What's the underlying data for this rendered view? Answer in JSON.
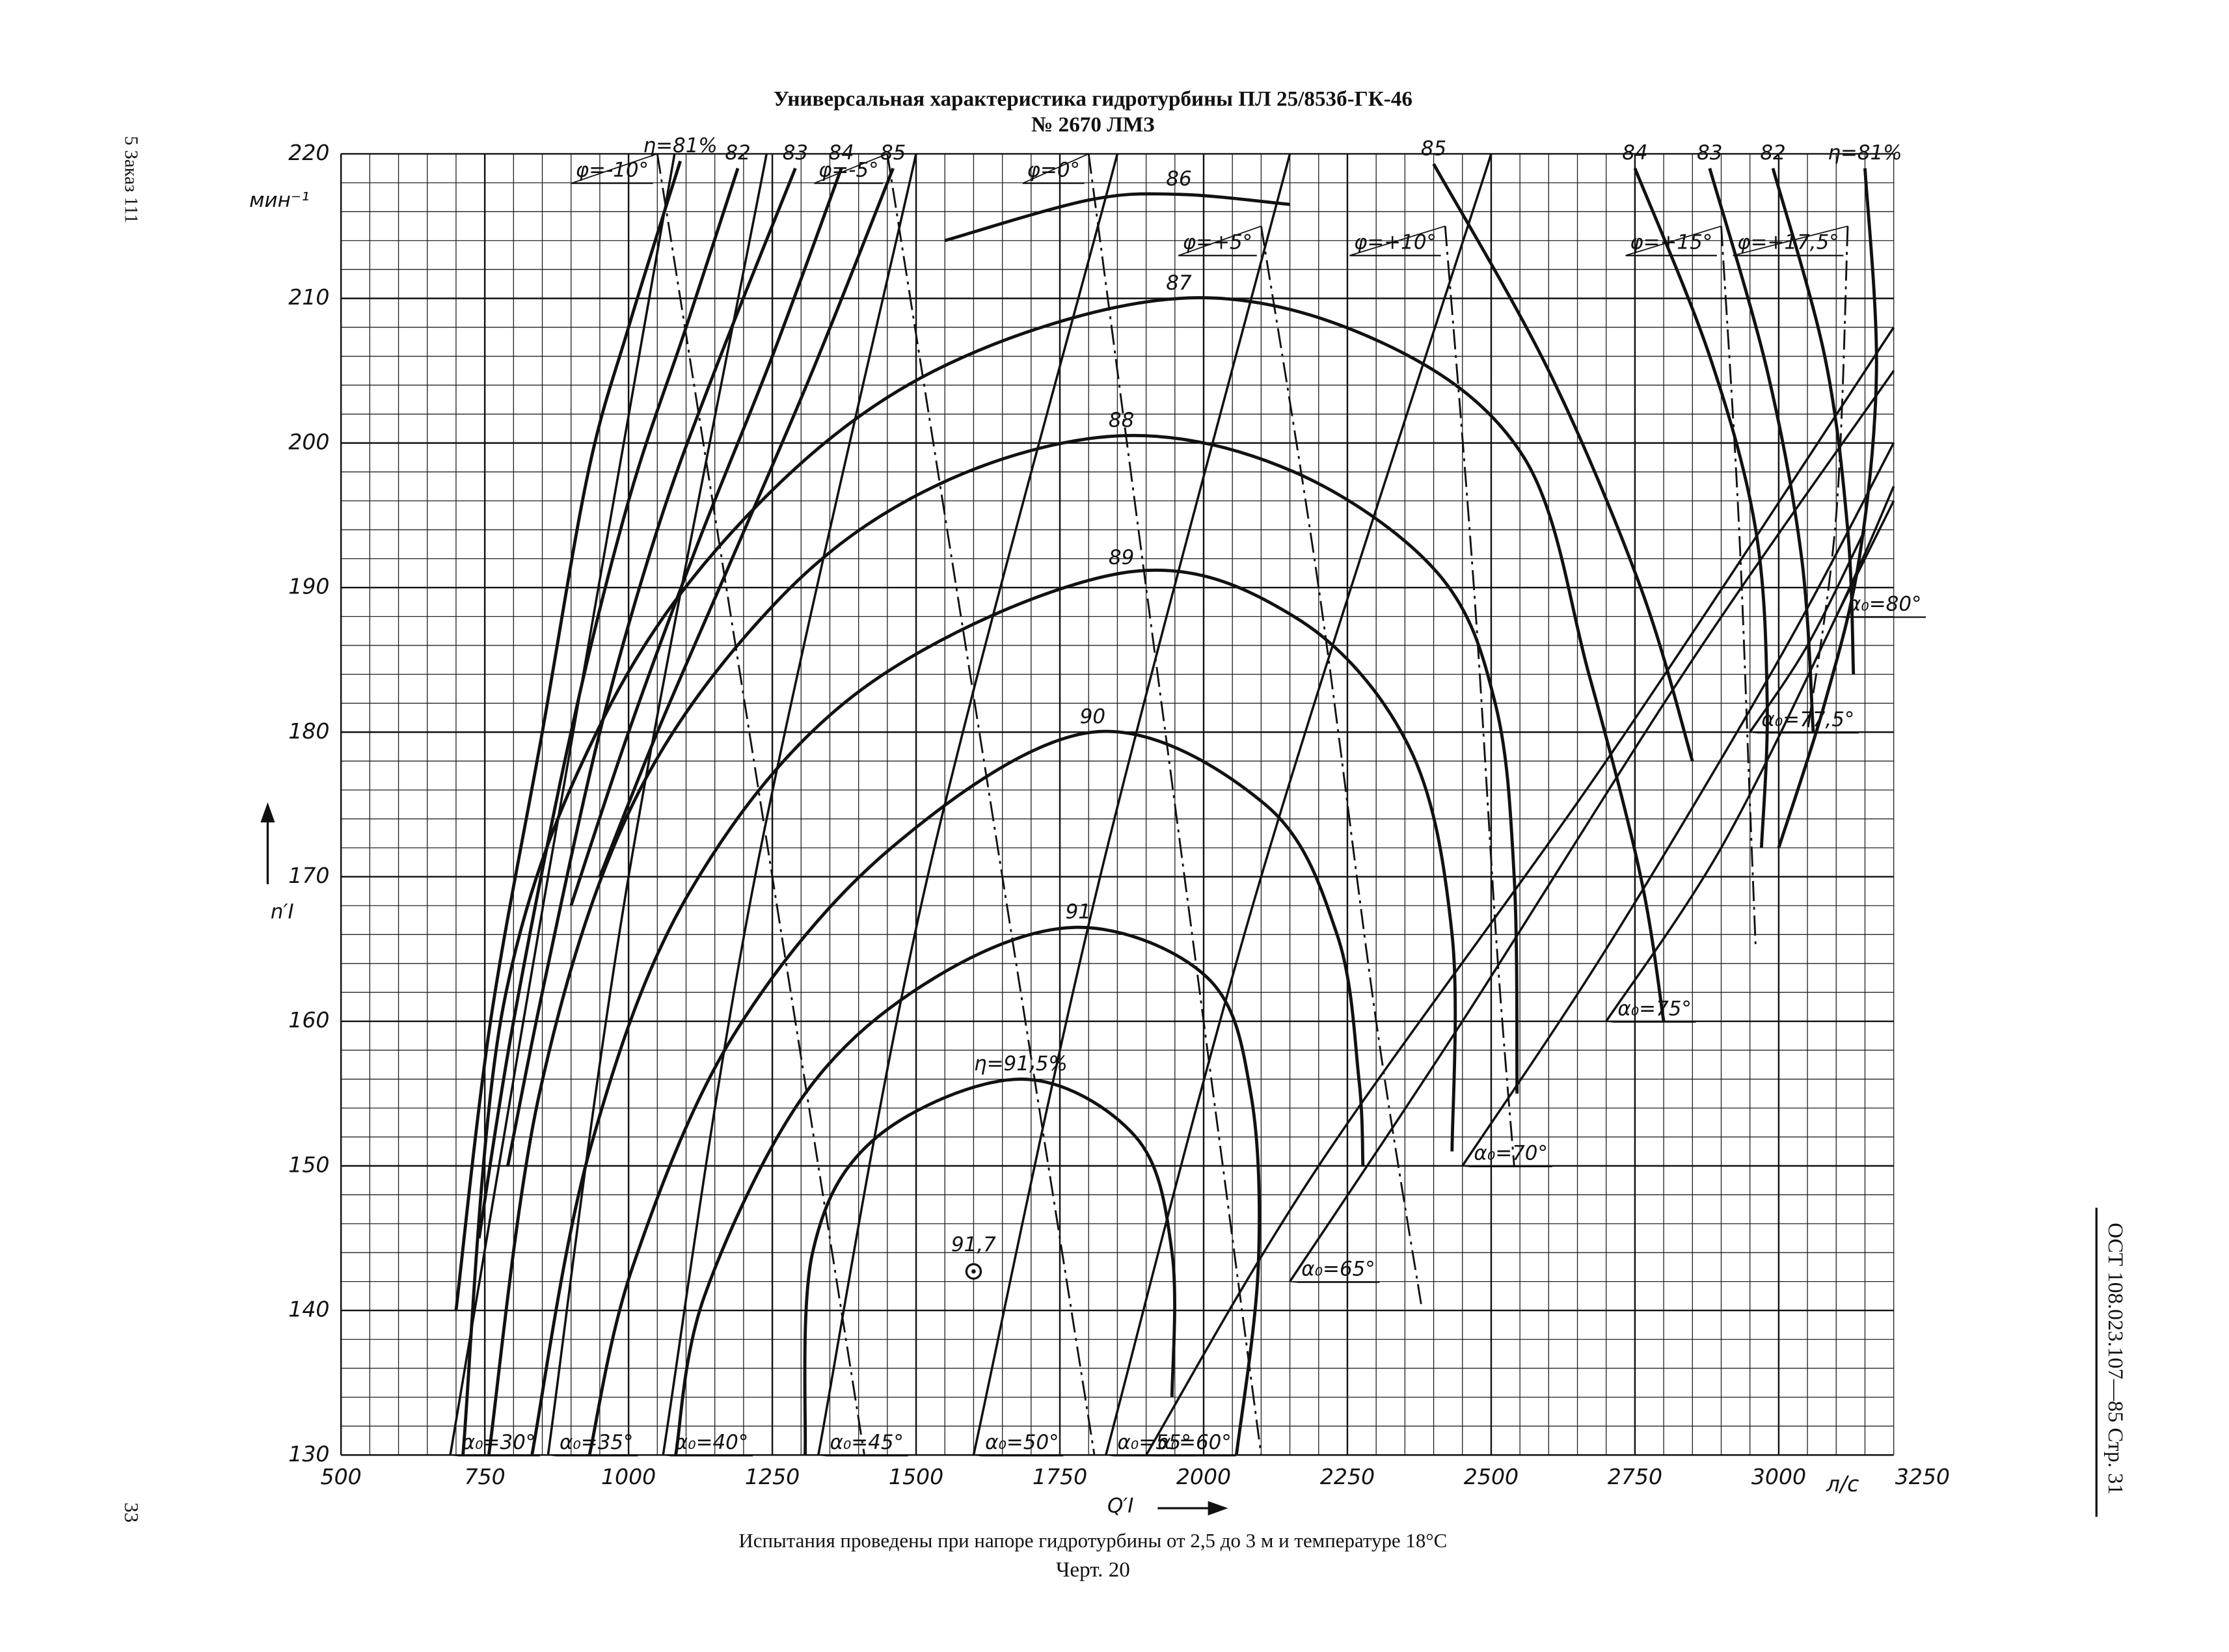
{
  "chart_data": {
    "type": "hill",
    "title": "Универсальная характеристика гидротурбины ПЛ 25/853б-ГК-46",
    "subtitle": "№ 2670 ЛМЗ",
    "x_label": "Q′I",
    "x_units": "л/с",
    "y_label": "n′I",
    "y_units": "мин⁻¹",
    "caption": "Испытания проведены при напоре гидротурбины от 2,5 до 3 м и температуре 18°С",
    "figure": "Черт. 20",
    "margin_left_top": "5 Заказ 111",
    "margin_left_bottom": "33",
    "margin_right": "ОСТ 108.023.107—85 Стр. 31",
    "xlim": [
      500,
      3200
    ],
    "ylim": [
      130,
      220
    ],
    "xticks": [
      500,
      750,
      1000,
      1250,
      1500,
      1750,
      2000,
      2250,
      2500,
      2750,
      3000,
      3250
    ],
    "yticks": [
      130,
      140,
      150,
      160,
      170,
      180,
      190,
      200,
      210,
      220
    ],
    "grid": true,
    "minor_divisions": 5,
    "optimum": {
      "label": "91,7",
      "x": 1600,
      "y": 142.7
    },
    "series": [
      {
        "name": "η=91,5%",
        "x": [
          1307,
          1320,
          1432,
          1682,
          1882,
          1945,
          1945
        ],
        "values": [
          130,
          144,
          152,
          156,
          152,
          144,
          134
        ]
      },
      {
        "name": "91",
        "x": [
          1082,
          1132,
          1307,
          1532,
          1782,
          2007,
          2082,
          2095,
          2057
        ],
        "values": [
          130,
          141,
          155,
          163,
          166.5,
          163,
          155,
          143,
          130
        ]
      },
      {
        "name": "90",
        "x": [
          932,
          1007,
          1182,
          1457,
          1807,
          2107,
          2232,
          2270,
          2277
        ],
        "values": [
          130,
          143,
          159,
          172,
          180,
          175,
          166,
          156,
          150
        ]
      },
      {
        "name": "89",
        "x": [
          832,
          932,
          1107,
          1407,
          1857,
          2157,
          2357,
          2432,
          2432
        ],
        "values": [
          130,
          151,
          169,
          183,
          191,
          188,
          179,
          166,
          151
        ]
      },
      {
        "name": "88",
        "x": [
          757,
          845,
          1007,
          1257,
          1532,
          1857,
          2157,
          2407,
          2507,
          2540,
          2545
        ],
        "values": [
          130,
          155,
          175,
          189,
          197,
          200.5,
          198,
          191,
          182,
          170,
          155
        ]
      },
      {
        "name": "87",
        "x": [
          712,
          782,
          957,
          1207,
          1532,
          1957,
          2307,
          2557,
          2670,
          2760,
          2800
        ],
        "values": [
          130,
          161,
          181,
          195,
          205,
          210,
          207,
          199,
          184,
          170,
          160
        ]
      },
      {
        "name": "86",
        "x": [
          1550,
          1800,
          1957,
          2150
        ],
        "values": [
          214,
          216.8,
          217.2,
          216.5
        ]
      },
      {
        "name": "85",
        "x": [
          1460,
          1320,
          1180,
          1050,
          950
        ],
        "values": [
          219,
          205,
          192,
          180,
          170
        ]
      },
      {
        "name": "84",
        "x": [
          1370,
          1250,
          1120,
          1000,
          900
        ],
        "values": [
          219,
          206,
          193,
          180,
          168
        ]
      },
      {
        "name": "83",
        "x": [
          1290,
          1150,
          1050,
          950,
          850,
          790
        ],
        "values": [
          219,
          205,
          194,
          180,
          162,
          150
        ]
      },
      {
        "name": "82",
        "x": [
          1190,
          1100,
          1000,
          900,
          800,
          740
        ],
        "values": [
          219,
          208,
          196,
          180,
          160,
          145
        ]
      },
      {
        "name": "η=81%",
        "x": [
          1090,
          1000,
          930,
          850,
          760,
          700
        ],
        "values": [
          219.5,
          208,
          198,
          180,
          160,
          140
        ]
      },
      {
        "name": "85",
        "x": [
          2400,
          2600,
          2760,
          2850
        ],
        "values": [
          219.3,
          205,
          190,
          178
        ]
      },
      {
        "name": "84",
        "x": [
          2750,
          2880,
          2960,
          2980,
          2970
        ],
        "values": [
          219,
          206,
          194,
          182,
          172
        ]
      },
      {
        "name": "83",
        "x": [
          2880,
          2980,
          3040,
          3060
        ],
        "values": [
          219,
          205,
          192,
          180
        ]
      },
      {
        "name": "82",
        "x": [
          2990,
          3080,
          3120,
          3130
        ],
        "values": [
          219,
          206,
          194,
          184
        ]
      },
      {
        "name": "η=81%",
        "x": [
          3150,
          3170,
          3140,
          3080,
          3000
        ],
        "values": [
          219,
          205,
          192,
          182,
          172
        ]
      }
    ],
    "guide_vane_lines": [
      {
        "name": "α₀=30°",
        "x": [
          690,
          860,
          1080
        ],
        "values": [
          130,
          170,
          220
        ]
      },
      {
        "name": "α₀=35°",
        "x": [
          860,
          1000,
          1240
        ],
        "values": [
          130,
          170,
          220
        ]
      },
      {
        "name": "α₀=40°",
        "x": [
          1060,
          1220,
          1500
        ],
        "values": [
          130,
          170,
          220
        ]
      },
      {
        "name": "α₀=45°",
        "x": [
          1330,
          1520,
          1850
        ],
        "values": [
          130,
          170,
          220
        ]
      },
      {
        "name": "α₀=50°",
        "x": [
          1600,
          1820,
          2150
        ],
        "values": [
          130,
          170,
          220
        ]
      },
      {
        "name": "α₀=55°",
        "x": [
          1830,
          2100,
          2500
        ],
        "values": [
          130,
          170,
          220
        ]
      },
      {
        "name": "α₀=60°",
        "x": [
          1900,
          2200,
          2700,
          3200
        ],
        "values": [
          130,
          150,
          178,
          208
        ]
      },
      {
        "name": "α₀=65°",
        "x": [
          2150,
          2450,
          2850,
          3200
        ],
        "values": [
          142,
          160,
          185,
          205
        ]
      },
      {
        "name": "α₀=70°",
        "x": [
          2450,
          2700,
          3000,
          3200
        ],
        "values": [
          150,
          165,
          185,
          200
        ]
      },
      {
        "name": "α₀=75°",
        "x": [
          2700,
          2900,
          3100,
          3200
        ],
        "values": [
          160,
          172,
          188,
          197
        ]
      },
      {
        "name": "α₀=77,5°",
        "x": [
          2950,
          3050,
          3150
        ],
        "values": [
          180,
          186,
          194
        ]
      },
      {
        "name": "α₀=80°",
        "x": [
          3100,
          3150,
          3200
        ],
        "values": [
          188,
          192,
          196
        ]
      }
    ],
    "blade_angle_lines": [
      {
        "name": "φ=-10°",
        "x": [
          1050,
          1170,
          1290,
          1410
        ],
        "values": [
          220,
          190,
          160,
          130
        ]
      },
      {
        "name": "φ=-5°",
        "x": [
          1450,
          1570,
          1690,
          1810
        ],
        "values": [
          220,
          190,
          160,
          130
        ]
      },
      {
        "name": "φ=0°",
        "x": [
          1800,
          1900,
          2000,
          2100
        ],
        "values": [
          220,
          190,
          160,
          130
        ]
      },
      {
        "name": "φ=+5°",
        "x": [
          2100,
          2200,
          2300,
          2380
        ],
        "values": [
          215,
          190,
          160,
          140
        ]
      },
      {
        "name": "φ=+10°",
        "x": [
          2420,
          2470,
          2510,
          2540
        ],
        "values": [
          215,
          190,
          165,
          150
        ]
      },
      {
        "name": "φ=+15°",
        "x": [
          2900,
          2930,
          2950,
          2960
        ],
        "values": [
          215,
          195,
          175,
          165
        ]
      },
      {
        "name": "φ=+17,5°",
        "x": [
          3120,
          3100,
          3050
        ],
        "values": [
          215,
          195,
          180
        ]
      }
    ]
  }
}
